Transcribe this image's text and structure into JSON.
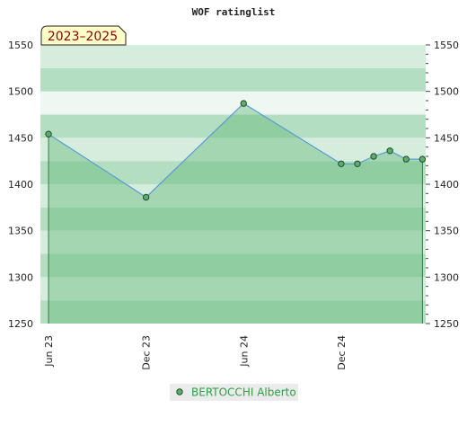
{
  "chart_data": {
    "type": "line",
    "title": "WOF ratinglist",
    "period_badge": "2023–2025",
    "xlabel": "",
    "ylabel": "",
    "ylim": [
      1250,
      1550
    ],
    "yticks": [
      1250,
      1300,
      1350,
      1400,
      1450,
      1500,
      1550
    ],
    "x_tick_labels": [
      {
        "label": "Jun 23",
        "month_index": 0
      },
      {
        "label": "Dec 23",
        "month_index": 6
      },
      {
        "label": "Jun 24",
        "month_index": 12
      },
      {
        "label": "Dec 24",
        "month_index": 18
      }
    ],
    "xlim_months": [
      -0.5,
      23.2
    ],
    "series": [
      {
        "name": "BERTOCCHI Alberto",
        "points": [
          {
            "month_index": 0,
            "value": 1454
          },
          {
            "month_index": 6,
            "value": 1386
          },
          {
            "month_index": 12,
            "value": 1487
          },
          {
            "month_index": 18,
            "value": 1422
          },
          {
            "month_index": 19,
            "value": 1422
          },
          {
            "month_index": 20,
            "value": 1430
          },
          {
            "month_index": 21,
            "value": 1436
          },
          {
            "month_index": 22,
            "value": 1427
          },
          {
            "month_index": 23,
            "value": 1427
          }
        ]
      }
    ],
    "legend_position": "bottom-center",
    "grid": true,
    "colors": {
      "band_dark": "#b3dec2",
      "band_light": "#d6ecdd",
      "band_lightest": "#eef7f1",
      "area_fill": "#5fb878",
      "line": "#5b9bd5",
      "marker_fill": "#5ead6e",
      "marker_stroke": "#1f4d2a",
      "badge_fill": "#ffffc8",
      "badge_text": "#8b0000"
    }
  }
}
